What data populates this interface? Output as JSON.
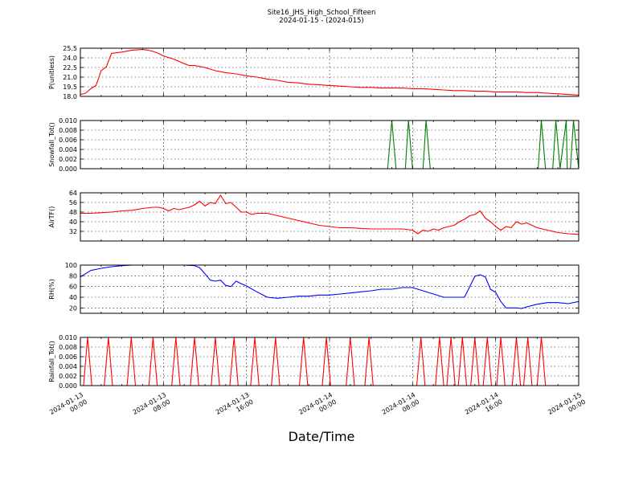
{
  "title": "Site16_JHS_High_School_Fifteen",
  "subtitle": "2024-01-15 - (2024-015)",
  "xlabel": "Date/Time",
  "x_ticks": [
    {
      "d": "2024-01-13",
      "t": "00:00",
      "h": 0
    },
    {
      "d": "2024-01-13",
      "t": "08:00",
      "h": 8
    },
    {
      "d": "2024-01-13",
      "t": "16:00",
      "h": 16
    },
    {
      "d": "2024-01-14",
      "t": "00:00",
      "h": 24
    },
    {
      "d": "2024-01-14",
      "t": "08:00",
      "h": 32
    },
    {
      "d": "2024-01-14",
      "t": "16:00",
      "h": 40
    },
    {
      "d": "2024-01-15",
      "t": "00:00",
      "h": 48
    }
  ],
  "chart_data": [
    {
      "type": "line",
      "ylabel": "P(unitless)",
      "color": "#ff0000",
      "ylim": [
        18.0,
        25.5
      ],
      "yticks": [
        "18.0",
        "19.5",
        "21.0",
        "22.5",
        "24.0",
        "25.5"
      ],
      "grid": true,
      "x": [
        0,
        0.5,
        1,
        1.5,
        1.7,
        2,
        2.5,
        3,
        4,
        5,
        6,
        6.5,
        7,
        7.5,
        8,
        9,
        10,
        10.5,
        11,
        12,
        13,
        14,
        15,
        16,
        17,
        18,
        19,
        20,
        21,
        22,
        23,
        24,
        25,
        26,
        27,
        28,
        29,
        30,
        31,
        32,
        33,
        34,
        35,
        36,
        37,
        38,
        39,
        40,
        41,
        42,
        43,
        44,
        45,
        46,
        47,
        48
      ],
      "y": [
        18.3,
        18.5,
        19.2,
        19.7,
        20.6,
        22.0,
        22.6,
        24.7,
        24.9,
        25.2,
        25.3,
        25.2,
        25.0,
        24.7,
        24.3,
        23.8,
        23.1,
        22.8,
        22.8,
        22.5,
        22.0,
        21.7,
        21.5,
        21.2,
        21.0,
        20.7,
        20.5,
        20.2,
        20.1,
        19.9,
        19.8,
        19.7,
        19.6,
        19.5,
        19.4,
        19.4,
        19.3,
        19.3,
        19.3,
        19.2,
        19.2,
        19.1,
        19.0,
        18.9,
        18.9,
        18.8,
        18.8,
        18.7,
        18.7,
        18.7,
        18.6,
        18.6,
        18.5,
        18.4,
        18.3,
        18.2
      ]
    },
    {
      "type": "line",
      "ylabel": "Snowfall_Tot()",
      "color": "#007f00",
      "ylim": [
        0,
        0.01
      ],
      "yticks": [
        "0.000",
        "0.002",
        "0.004",
        "0.006",
        "0.008",
        "0.010"
      ],
      "grid": true,
      "x": [
        0,
        29.6,
        30.0,
        30.4,
        31.3,
        31.6,
        32.0,
        33.0,
        33.3,
        33.7,
        44.1,
        44.4,
        44.8,
        45.5,
        45.8,
        46.2,
        46.8,
        46.9,
        47.2,
        47.5,
        48
      ],
      "y": [
        0,
        0,
        0.01,
        0,
        0,
        0.01,
        0,
        0,
        0.01,
        0,
        0,
        0.01,
        0,
        0,
        0.01,
        0,
        0.01,
        0,
        0,
        0.01,
        0
      ]
    },
    {
      "type": "line",
      "ylabel": "AirTF()",
      "color": "#ff0000",
      "ylim": [
        24,
        64
      ],
      "yticks": [
        "32",
        "40",
        "48",
        "56",
        "64"
      ],
      "grid": true,
      "x": [
        0,
        1,
        2,
        3,
        4,
        5,
        6,
        7,
        7.5,
        8,
        8.5,
        9,
        9.5,
        10,
        10.5,
        11,
        11.5,
        12,
        12.5,
        13,
        13.5,
        14,
        14.5,
        15,
        15.5,
        16,
        16.5,
        17,
        18,
        19,
        20,
        21,
        22,
        23,
        24,
        25,
        26,
        27,
        28,
        29,
        30,
        31,
        32,
        32.5,
        33,
        33.5,
        34,
        34.5,
        35,
        35.5,
        36,
        36.5,
        37,
        37.5,
        38,
        38.5,
        39,
        39.5,
        40,
        40.5,
        41,
        41.5,
        42,
        42.5,
        43,
        43.5,
        44,
        45,
        46,
        47,
        48
      ],
      "y": [
        47,
        47,
        47.5,
        48,
        49,
        49.5,
        51,
        52,
        52,
        51,
        49,
        51,
        50,
        51,
        52,
        54,
        57,
        53,
        56,
        55,
        62,
        55,
        56,
        52,
        48,
        48,
        46,
        47,
        47,
        45,
        43,
        41,
        39,
        37,
        36,
        35,
        35,
        34.5,
        34,
        34,
        34,
        34,
        33,
        30,
        33,
        32,
        34,
        33,
        35,
        36,
        37,
        40,
        42,
        45,
        46,
        49,
        43,
        40,
        36,
        33,
        36,
        35,
        40,
        38,
        39,
        37,
        35,
        33,
        31,
        30,
        29.5
      ]
    },
    {
      "type": "line",
      "ylabel": "RH(%)",
      "color": "#0000ff",
      "ylim": [
        10,
        100
      ],
      "yticks": [
        "20",
        "40",
        "60",
        "80",
        "100"
      ],
      "grid": true,
      "x": [
        0,
        0.5,
        1,
        2,
        3,
        4,
        5,
        6,
        7,
        8,
        9,
        10,
        11,
        11.5,
        12,
        12.5,
        13,
        13.5,
        14,
        14.5,
        15,
        15.5,
        16,
        17,
        18,
        19,
        20,
        21,
        22,
        23,
        24,
        25,
        26,
        27,
        28,
        29,
        30,
        31,
        32,
        33,
        34,
        35,
        36,
        37,
        38,
        38.5,
        39,
        39.5,
        40,
        40.5,
        41,
        41.5,
        42,
        42.5,
        43,
        44,
        45,
        46,
        47,
        48
      ],
      "y": [
        78,
        84,
        90,
        94,
        97,
        99,
        100,
        100,
        100,
        100,
        100,
        100,
        99,
        95,
        84,
        72,
        70,
        72,
        62,
        60,
        70,
        65,
        61,
        50,
        40,
        38,
        40,
        42,
        42,
        44,
        44,
        46,
        48,
        50,
        52,
        55,
        55,
        58,
        58,
        52,
        46,
        40,
        40,
        40,
        79,
        82,
        78,
        55,
        49,
        32,
        20,
        20,
        20,
        19,
        22,
        27,
        30,
        30,
        28,
        32
      ]
    },
    {
      "type": "line",
      "ylabel": "Rainfall_Tot()",
      "color": "#ff0000",
      "ylim": [
        0,
        0.01
      ],
      "yticks": [
        "0.000",
        "0.002",
        "0.004",
        "0.006",
        "0.008",
        "0.010"
      ],
      "grid": true,
      "x": [
        0,
        0.3,
        0.7,
        1.1,
        2.3,
        2.7,
        3.1,
        4.5,
        4.9,
        5.3,
        6.6,
        7.0,
        7.4,
        8.8,
        9.2,
        9.6,
        10.6,
        11.0,
        11.4,
        12.6,
        13.0,
        13.4,
        14.4,
        14.8,
        15.2,
        16.4,
        16.8,
        17.2,
        18.4,
        18.8,
        19.2,
        21.1,
        21.5,
        21.9,
        23.3,
        23.7,
        24.1,
        25.6,
        26.0,
        26.4,
        27.4,
        27.8,
        28.2,
        32.4,
        32.8,
        33.2,
        34.2,
        34.6,
        35.0,
        35.3,
        35.7,
        36.1,
        36.4,
        36.8,
        37.2,
        37.6,
        38.0,
        38.4,
        38.8,
        39.2,
        39.6,
        40.1,
        40.5,
        40.9,
        41.6,
        42.0,
        42.4,
        42.7,
        43.1,
        43.5,
        44.0,
        44.4,
        44.8,
        48
      ],
      "y": [
        0,
        0,
        0.01,
        0,
        0,
        0.01,
        0,
        0,
        0.01,
        0,
        0,
        0.01,
        0,
        0,
        0.01,
        0,
        0,
        0.01,
        0,
        0,
        0.01,
        0,
        0,
        0.01,
        0,
        0,
        0.01,
        0,
        0,
        0.01,
        0,
        0,
        0.01,
        0,
        0,
        0.01,
        0,
        0,
        0.01,
        0,
        0,
        0.01,
        0,
        0,
        0.01,
        0,
        0,
        0.01,
        0,
        0,
        0.01,
        0,
        0,
        0.01,
        0,
        0,
        0.01,
        0,
        0,
        0.01,
        0,
        0,
        0.01,
        0,
        0,
        0.01,
        0,
        0,
        0.01,
        0,
        0,
        0.01,
        0,
        0
      ]
    }
  ]
}
